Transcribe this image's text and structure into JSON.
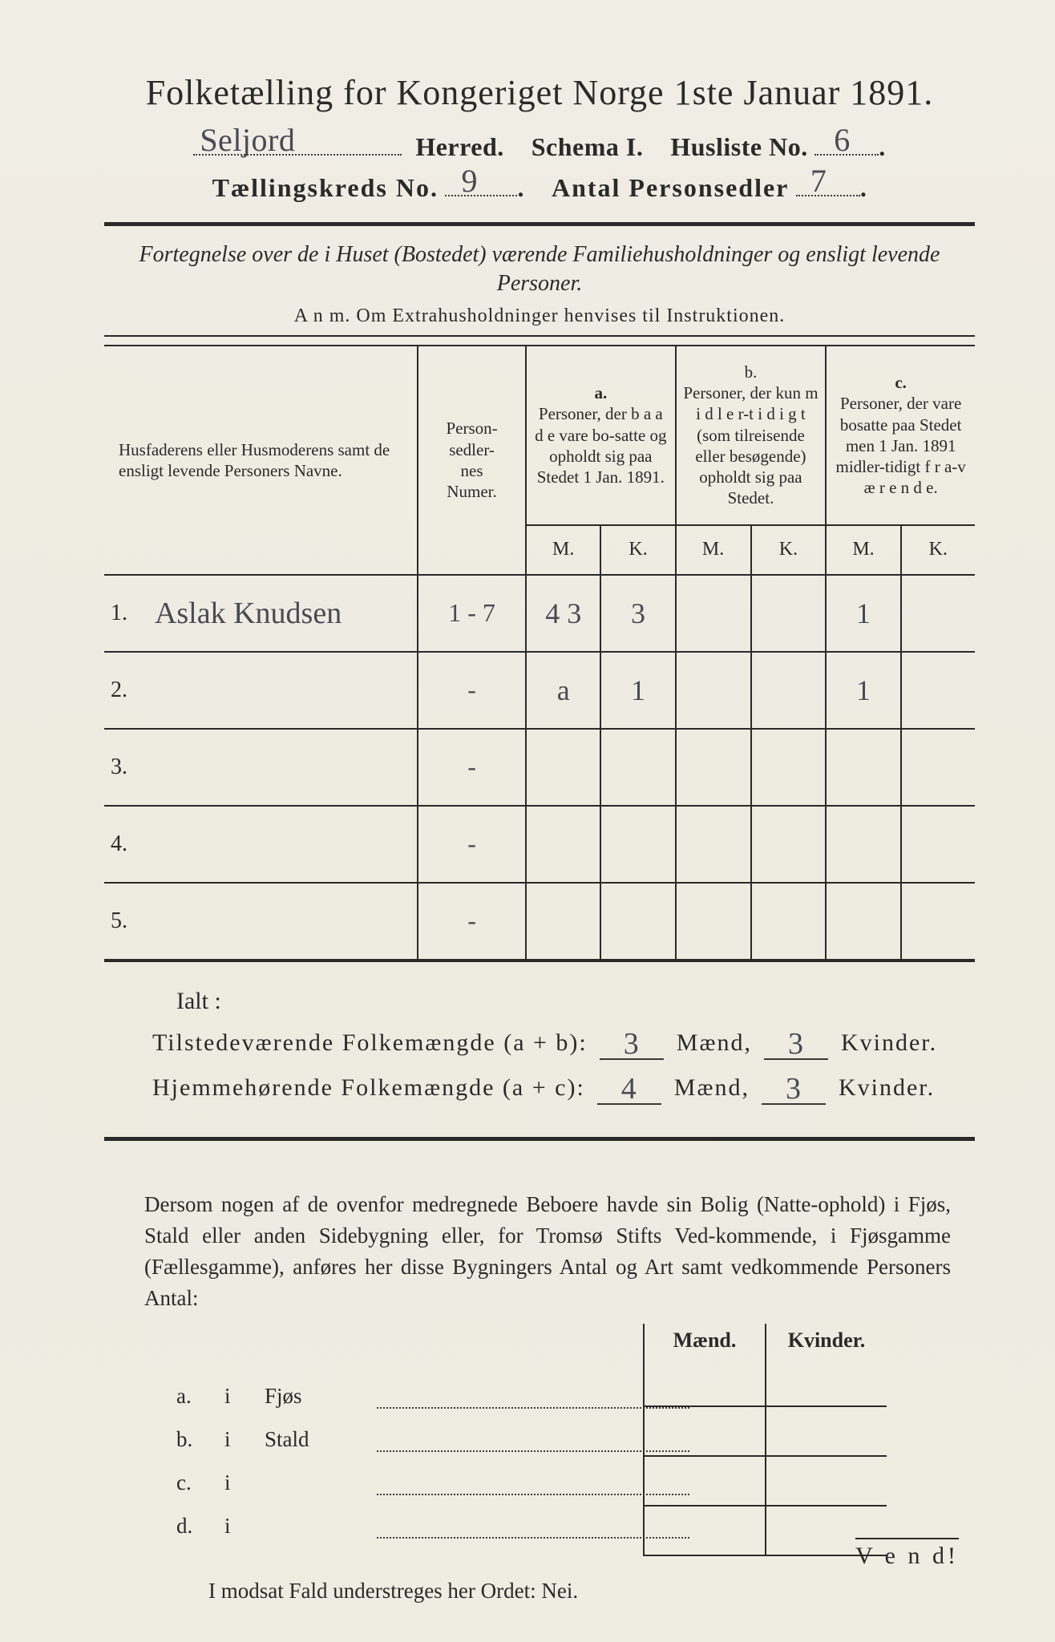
{
  "colors": {
    "paper": "#f0ede4",
    "ink": "#2a2a2a",
    "handwriting": "#4a4a55"
  },
  "title": "Folketælling for Kongeriget Norge 1ste Januar 1891.",
  "line2": {
    "herred_hand": "Seljord",
    "herred_lbl": "Herred.",
    "schema_lbl": "Schema I.",
    "husliste_lbl": "Husliste No.",
    "husliste_hand": "6"
  },
  "line3": {
    "kreds_lbl": "Tællingskreds No.",
    "kreds_hand": "9",
    "antal_lbl": "Antal Personsedler",
    "antal_hand": "7"
  },
  "fortegnelse": "Fortegnelse over de i Huset (Bostedet) værende Familiehusholdninger og ensligt levende Personer.",
  "anm": "A n m.   Om Extrahusholdninger henvises til Instruktionen.",
  "table": {
    "head_names": "Husfaderens eller Husmoderens samt de ensligt levende Personers Navne.",
    "head_psn": "Person-\nsedler-\nnes\nNumer.",
    "col_a_top": "a.",
    "col_a": "Personer, der b a a d e vare bo-satte og opholdt sig paa Stedet 1 Jan. 1891.",
    "col_b_top": "b.",
    "col_b": "Personer, der kun m i d l e r-t i d i g t (som tilreisende eller besøgende) opholdt sig paa Stedet.",
    "col_c_top": "c.",
    "col_c": "Personer, der vare bosatte paa Stedet men 1 Jan. 1891 midler-tidigt f r a-v æ r e n d e.",
    "m": "M.",
    "k": "K.",
    "rows": [
      {
        "num": "1.",
        "name": "Aslak Knudsen",
        "psn": "1 - 7",
        "a_m": "4 3",
        "a_k": "3",
        "b_m": "",
        "b_k": "",
        "c_m": "1",
        "c_k": ""
      },
      {
        "num": "2.",
        "name": "",
        "psn": "-",
        "a_m": "a",
        "a_k": "1",
        "b_m": "",
        "b_k": "",
        "c_m": "1",
        "c_k": ""
      },
      {
        "num": "3.",
        "name": "",
        "psn": "-",
        "a_m": "",
        "a_k": "",
        "b_m": "",
        "b_k": "",
        "c_m": "",
        "c_k": ""
      },
      {
        "num": "4.",
        "name": "",
        "psn": "-",
        "a_m": "",
        "a_k": "",
        "b_m": "",
        "b_k": "",
        "c_m": "",
        "c_k": ""
      },
      {
        "num": "5.",
        "name": "",
        "psn": "-",
        "a_m": "",
        "a_k": "",
        "b_m": "",
        "b_k": "",
        "c_m": "",
        "c_k": ""
      }
    ]
  },
  "ialt": "Ialt :",
  "sum1": {
    "label": "Tilstedeværende Folkemængde (a + b):",
    "maend": "3",
    "maend_lbl": "Mænd,",
    "kvinder": "3",
    "kvinder_lbl": "Kvinder."
  },
  "sum2": {
    "label": "Hjemmehørende Folkemængde (a + c):",
    "maend": "4",
    "maend_lbl": "Mænd,",
    "kvinder": "3",
    "kvinder_lbl": "Kvinder."
  },
  "para": "Dersom nogen af de ovenfor medregnede Beboere havde sin Bolig (Natte-ophold) i Fjøs, Stald eller anden Sidebygning eller, for Tromsø Stifts Ved-kommende, i Fjøsgamme (Fællesgamme), anføres her disse Bygningers Antal og Art samt vedkommende Personers Antal:",
  "mk_head": {
    "m": "Mænd.",
    "k": "Kvinder."
  },
  "side": [
    {
      "letter": "a.",
      "i": "i",
      "name": "Fjøs"
    },
    {
      "letter": "b.",
      "i": "i",
      "name": "Stald"
    },
    {
      "letter": "c.",
      "i": "i",
      "name": ""
    },
    {
      "letter": "d.",
      "i": "i",
      "name": ""
    }
  ],
  "nei": "I modsat Fald understreges her Ordet: Nei.",
  "vend": "V e n d!"
}
